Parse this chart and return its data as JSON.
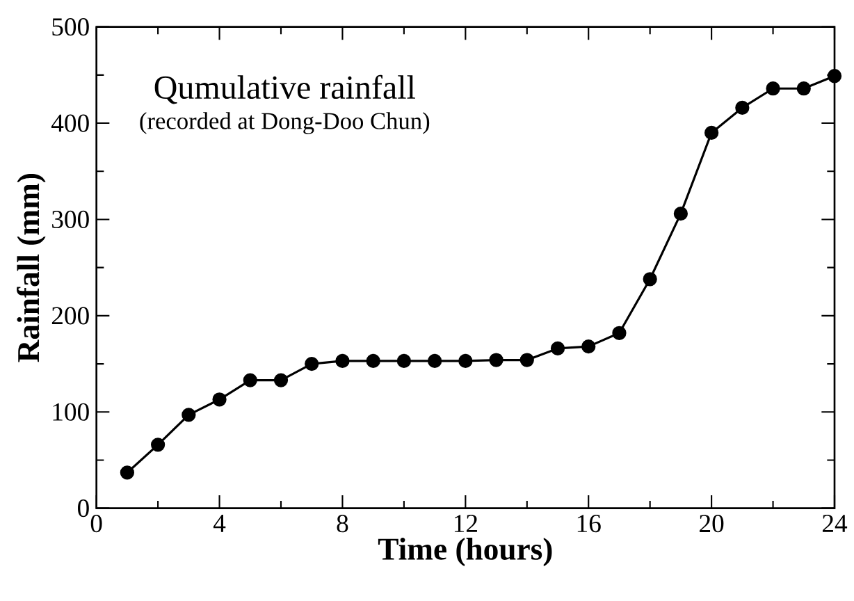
{
  "chart_data": {
    "type": "line",
    "xlabel": "Time (hours)",
    "ylabel": "Rainfall (mm)",
    "annotations": [
      "Qumulative rainfall",
      "(recorded at Dong-Doo Chun)"
    ],
    "x": [
      1,
      2,
      3,
      4,
      5,
      6,
      7,
      8,
      9,
      10,
      11,
      12,
      13,
      14,
      15,
      16,
      17,
      18,
      19,
      20,
      21,
      22,
      23,
      24
    ],
    "series": [
      {
        "color": "#000000",
        "values": [
          37,
          66,
          97,
          113,
          133,
          133,
          150,
          153,
          153,
          153,
          153,
          153,
          154,
          154,
          166,
          168,
          182,
          238,
          306,
          390,
          416,
          436,
          436,
          449
        ]
      }
    ],
    "xlim": [
      0,
      24
    ],
    "ylim": [
      0,
      500
    ],
    "xticks": [
      0,
      4,
      8,
      12,
      16,
      20,
      24
    ],
    "yticks": [
      0,
      100,
      200,
      300,
      400,
      500
    ],
    "marker": "circle",
    "line_style": "solid",
    "grid": false
  }
}
